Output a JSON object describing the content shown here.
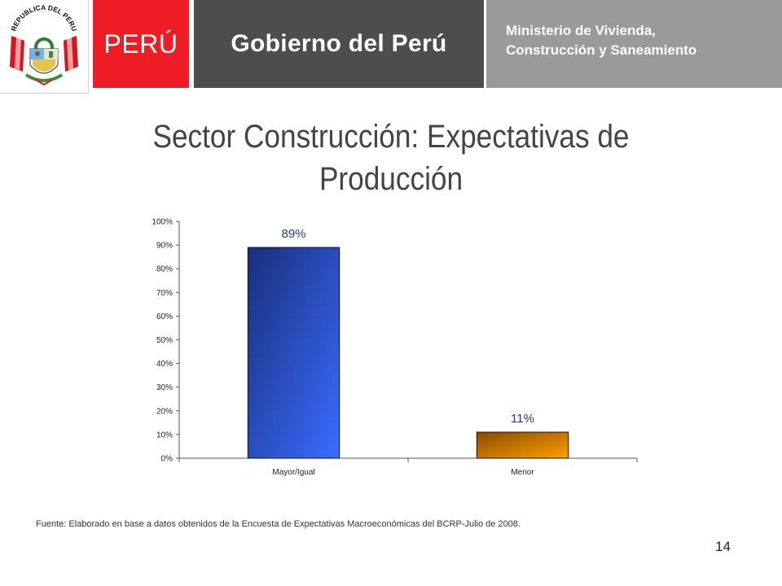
{
  "header": {
    "seal_text": "REPUBLICA DEL PERU",
    "peru_label": "PERÚ",
    "gobierno_label": "Gobierno del Perú",
    "ministerio_line1": "Ministerio de Vivienda,",
    "ministerio_line2": "Construcción y Saneamiento",
    "colors": {
      "red": "#ee1c25",
      "dark_gray": "#4d4d4d",
      "light_gray": "#9a9a9a"
    }
  },
  "slide": {
    "title_line1": "Sector Construcción: Expectativas de",
    "title_line2": "Producción",
    "source": "Fuente: Elaborado en base a datos obtenidos de la  Encuesta de Expectativas Macroeconómicas del BCRP-Julio de 2008.",
    "page_number": "14"
  },
  "chart_data": {
    "type": "bar",
    "categories": [
      "Mayor/Igual",
      "Menor"
    ],
    "values": [
      89,
      11
    ],
    "data_labels": [
      "89%",
      "11%"
    ],
    "yticks": [
      "0%",
      "10%",
      "20%",
      "30%",
      "40%",
      "50%",
      "60%",
      "70%",
      "80%",
      "90%",
      "100%"
    ],
    "ylim": [
      0,
      100
    ],
    "grid": false,
    "bar_colors": [
      "#2f5ee8",
      "#f08c00"
    ],
    "label_color": "#1f3a8a"
  }
}
